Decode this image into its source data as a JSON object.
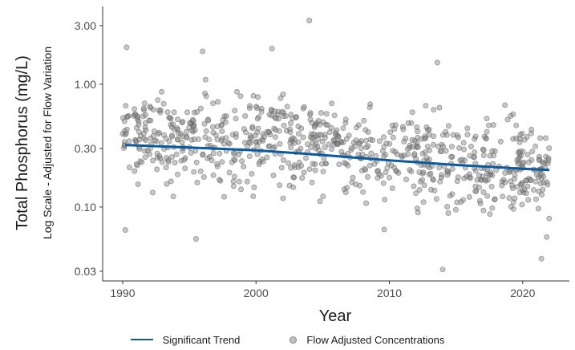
{
  "chart_data": {
    "type": "scatter",
    "x_axis": {
      "label": "Year",
      "range": [
        1988.5,
        2023.5
      ],
      "ticks": [
        1990,
        2000,
        2010,
        2020
      ]
    },
    "y_axis": {
      "label": "Total Phosphorus (mg/L)",
      "sublabel": "Log Scale - Adjusted for Flow Variation",
      "scale": "log",
      "range": [
        0.025,
        4.3
      ],
      "ticks": [
        0.03,
        0.1,
        0.3,
        1.0,
        3.0
      ],
      "tick_labels": [
        "0.03",
        "0.10",
        "0.30",
        "1.00",
        "3.00"
      ]
    },
    "series": [
      {
        "name": "Flow Adjusted Concentrations",
        "kind": "points",
        "color": "#8c8c8c",
        "approx_count": 820,
        "notes": "Dense cloud of flow-adjusted concentrations from 1990 to 2022, mostly between 0.1 and 1.0 mg/L; highest near 3.3 mg/L around 2004, lowest near 0.03 mg/L around 2014"
      },
      {
        "name": "Significant Trend",
        "kind": "line",
        "color": "#0b5aa0",
        "x": [
          1990.2,
          1995,
          2000,
          2005,
          2010,
          2015,
          2020,
          2022
        ],
        "y": [
          0.32,
          0.305,
          0.29,
          0.265,
          0.24,
          0.22,
          0.205,
          0.2
        ]
      }
    ],
    "grid": false,
    "legend_position": "bottom"
  },
  "legend": {
    "trend_label": "Significant Trend",
    "points_label": "Flow Adjusted Concentrations"
  }
}
